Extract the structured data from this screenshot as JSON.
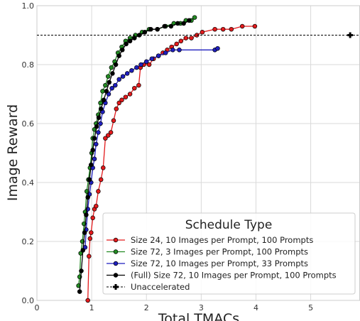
{
  "chart_data": {
    "type": "line",
    "xlabel": "Total TMACs",
    "ylabel": "Image Reward",
    "xlim": [
      0,
      5.9
    ],
    "ylim": [
      0.0,
      1.0
    ],
    "x_ticks": [
      "0",
      "1",
      "2",
      "3",
      "4",
      "5"
    ],
    "y_ticks": [
      "0.0",
      "0.2",
      "0.4",
      "0.6",
      "0.8",
      "1.0"
    ],
    "grid": true,
    "legend": {
      "title": "Schedule Type",
      "placement": "lower-right"
    },
    "series": [
      {
        "name": "Size 24, 10 Images per Prompt, 100 Prompts",
        "color": "#e31a1c",
        "marker": "circle",
        "line": "solid",
        "points": [
          [
            0.93,
            0.0
          ],
          [
            0.95,
            0.15
          ],
          [
            0.97,
            0.21
          ],
          [
            0.99,
            0.23
          ],
          [
            1.02,
            0.28
          ],
          [
            1.05,
            0.31
          ],
          [
            1.08,
            0.32
          ],
          [
            1.12,
            0.37
          ],
          [
            1.17,
            0.41
          ],
          [
            1.21,
            0.45
          ],
          [
            1.25,
            0.55
          ],
          [
            1.3,
            0.56
          ],
          [
            1.35,
            0.57
          ],
          [
            1.4,
            0.61
          ],
          [
            1.45,
            0.65
          ],
          [
            1.5,
            0.67
          ],
          [
            1.55,
            0.68
          ],
          [
            1.62,
            0.69
          ],
          [
            1.7,
            0.7
          ],
          [
            1.78,
            0.72
          ],
          [
            1.86,
            0.73
          ],
          [
            1.89,
            0.79
          ],
          [
            1.95,
            0.8
          ],
          [
            2.05,
            0.8
          ],
          [
            2.13,
            0.82
          ],
          [
            2.22,
            0.83
          ],
          [
            2.3,
            0.84
          ],
          [
            2.38,
            0.85
          ],
          [
            2.46,
            0.86
          ],
          [
            2.55,
            0.87
          ],
          [
            2.63,
            0.88
          ],
          [
            2.72,
            0.89
          ],
          [
            2.82,
            0.89
          ],
          [
            2.92,
            0.9
          ],
          [
            3.02,
            0.91
          ],
          [
            3.25,
            0.92
          ],
          [
            3.4,
            0.92
          ],
          [
            3.55,
            0.92
          ],
          [
            3.75,
            0.93
          ],
          [
            3.98,
            0.93
          ]
        ]
      },
      {
        "name": "Size 72, 3 Images per Prompt, 100 Prompts",
        "color": "#238b23",
        "marker": "circle",
        "line": "solid",
        "points": [
          [
            0.76,
            0.05
          ],
          [
            0.78,
            0.08
          ],
          [
            0.8,
            0.16
          ],
          [
            0.83,
            0.2
          ],
          [
            0.86,
            0.26
          ],
          [
            0.88,
            0.3
          ],
          [
            0.91,
            0.37
          ],
          [
            0.94,
            0.41
          ],
          [
            0.97,
            0.45
          ],
          [
            1.0,
            0.5
          ],
          [
            1.02,
            0.55
          ],
          [
            1.05,
            0.58
          ],
          [
            1.08,
            0.6
          ],
          [
            1.12,
            0.63
          ],
          [
            1.16,
            0.67
          ],
          [
            1.2,
            0.71
          ],
          [
            1.25,
            0.73
          ],
          [
            1.3,
            0.76
          ],
          [
            1.36,
            0.79
          ],
          [
            1.42,
            0.81
          ],
          [
            1.48,
            0.84
          ],
          [
            1.55,
            0.86
          ],
          [
            1.62,
            0.88
          ],
          [
            1.7,
            0.89
          ],
          [
            1.8,
            0.9
          ],
          [
            1.92,
            0.91
          ],
          [
            2.05,
            0.92
          ],
          [
            2.2,
            0.92
          ],
          [
            2.35,
            0.93
          ],
          [
            2.5,
            0.94
          ],
          [
            2.62,
            0.94
          ],
          [
            2.72,
            0.95
          ],
          [
            2.82,
            0.95
          ],
          [
            2.88,
            0.96
          ]
        ]
      },
      {
        "name": "Size 72, 10 Images per Prompt, 33 Prompts",
        "color": "#1f1fbf",
        "marker": "circle",
        "line": "solid",
        "points": [
          [
            0.88,
            0.18
          ],
          [
            0.9,
            0.24
          ],
          [
            0.93,
            0.31
          ],
          [
            0.96,
            0.36
          ],
          [
            0.99,
            0.4
          ],
          [
            1.02,
            0.45
          ],
          [
            1.05,
            0.48
          ],
          [
            1.08,
            0.53
          ],
          [
            1.12,
            0.57
          ],
          [
            1.16,
            0.6
          ],
          [
            1.2,
            0.64
          ],
          [
            1.25,
            0.67
          ],
          [
            1.31,
            0.7
          ],
          [
            1.37,
            0.72
          ],
          [
            1.43,
            0.73
          ],
          [
            1.5,
            0.75
          ],
          [
            1.57,
            0.76
          ],
          [
            1.65,
            0.77
          ],
          [
            1.73,
            0.78
          ],
          [
            1.82,
            0.79
          ],
          [
            1.9,
            0.8
          ],
          [
            2.0,
            0.81
          ],
          [
            2.1,
            0.82
          ],
          [
            2.22,
            0.83
          ],
          [
            2.35,
            0.84
          ],
          [
            2.48,
            0.85
          ],
          [
            2.6,
            0.85
          ],
          [
            3.25,
            0.85
          ],
          [
            3.3,
            0.855
          ]
        ]
      },
      {
        "name": "(Full) Size 72, 10 Images per Prompt, 100 Prompts",
        "color": "#000000",
        "marker": "circle",
        "line": "solid",
        "points": [
          [
            0.78,
            0.03
          ],
          [
            0.81,
            0.1
          ],
          [
            0.84,
            0.17
          ],
          [
            0.87,
            0.23
          ],
          [
            0.9,
            0.29
          ],
          [
            0.93,
            0.35
          ],
          [
            0.96,
            0.41
          ],
          [
            0.99,
            0.46
          ],
          [
            1.02,
            0.51
          ],
          [
            1.05,
            0.55
          ],
          [
            1.09,
            0.59
          ],
          [
            1.13,
            0.62
          ],
          [
            1.17,
            0.65
          ],
          [
            1.22,
            0.68
          ],
          [
            1.27,
            0.71
          ],
          [
            1.32,
            0.74
          ],
          [
            1.38,
            0.77
          ],
          [
            1.44,
            0.8
          ],
          [
            1.5,
            0.83
          ],
          [
            1.56,
            0.85
          ],
          [
            1.63,
            0.87
          ],
          [
            1.7,
            0.88
          ],
          [
            1.78,
            0.89
          ],
          [
            1.87,
            0.9
          ],
          [
            1.97,
            0.91
          ],
          [
            2.08,
            0.92
          ],
          [
            2.2,
            0.92
          ],
          [
            2.33,
            0.93
          ],
          [
            2.45,
            0.93
          ],
          [
            2.57,
            0.94
          ],
          [
            2.68,
            0.94
          ],
          [
            2.78,
            0.95
          ]
        ]
      },
      {
        "name": "Unaccelerated",
        "color": "#000000",
        "marker": "plus",
        "line": "dashed",
        "points": [
          [
            5.72,
            0.9
          ]
        ],
        "reference_y": 0.9
      }
    ]
  }
}
